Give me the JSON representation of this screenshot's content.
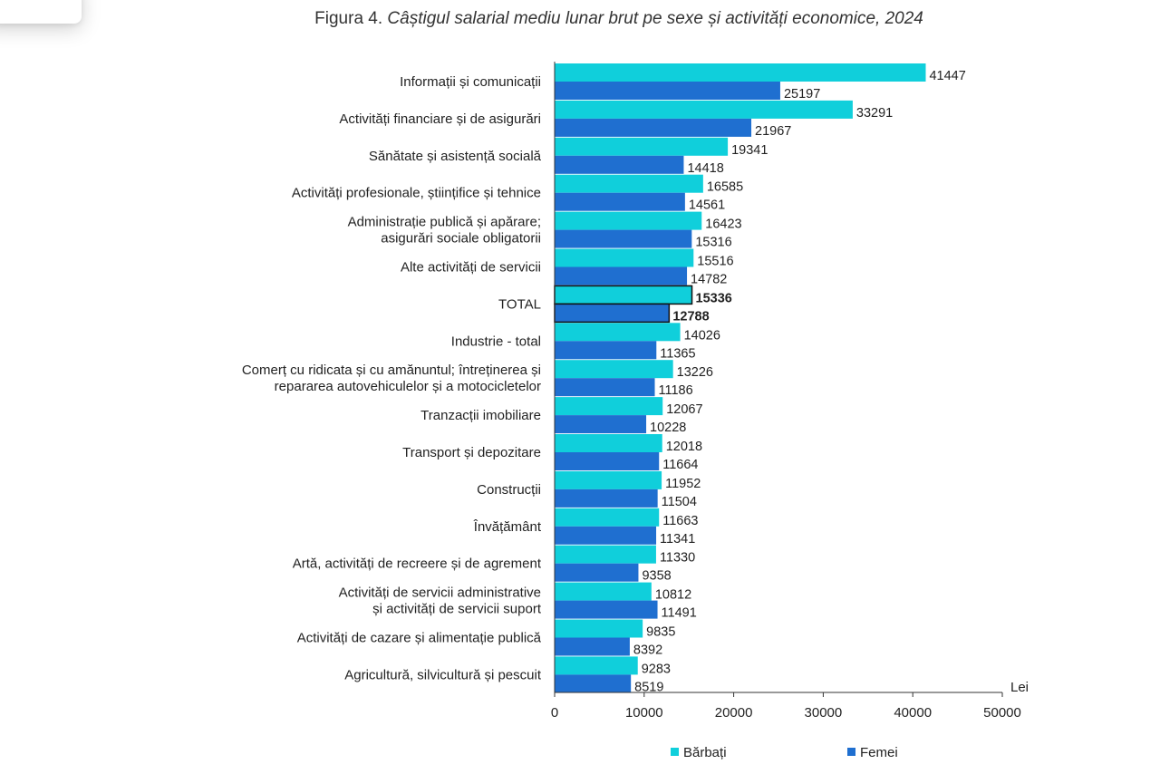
{
  "figure": {
    "prefix": "Figura 4.",
    "title": "Câștigul salarial mediu lunar brut pe sexe și activități economice, 2024"
  },
  "chart_data": {
    "type": "bar",
    "orientation": "horizontal",
    "categories": [
      "Informații și comunicații",
      "Activități financiare și de asigurări",
      "Sănătate și asistență socială",
      "Activități profesionale, științifice și tehnice",
      "Administrație publică și apărare;\nasigurări sociale obligatorii",
      "Alte activități de servicii",
      "TOTAL",
      "Industrie - total",
      "Comerț cu ridicata și cu amănuntul; întreținerea și\nrepararea autovehiculelor și a motocicletelor",
      "Tranzacții imobiliare",
      "Transport și depozitare",
      "Construcții",
      "Învățământ",
      "Artă, activități de recreere și de agrement",
      "Activități de servicii administrative\nși activități de servicii suport",
      "Activități de cazare și alimentație publică",
      "Agricultură, silvicultură și pescuit"
    ],
    "series": [
      {
        "name": "Bărbați",
        "color": "#10cfdb",
        "values": [
          41447,
          33291,
          19341,
          16585,
          16423,
          15516,
          15336,
          14026,
          13226,
          12067,
          12018,
          11952,
          11663,
          11330,
          10812,
          9835,
          9283
        ]
      },
      {
        "name": "Femei",
        "color": "#1f6fd0",
        "values": [
          25197,
          21967,
          14418,
          14561,
          15316,
          14782,
          12788,
          11365,
          11186,
          10228,
          11664,
          11504,
          11341,
          9358,
          11491,
          8392,
          8519
        ]
      }
    ],
    "highlight_category": "TOTAL",
    "xlim": [
      0,
      50000
    ],
    "xticks": [
      0,
      10000,
      20000,
      30000,
      40000,
      50000
    ],
    "xunit": "Lei",
    "legend_position": "bottom"
  }
}
